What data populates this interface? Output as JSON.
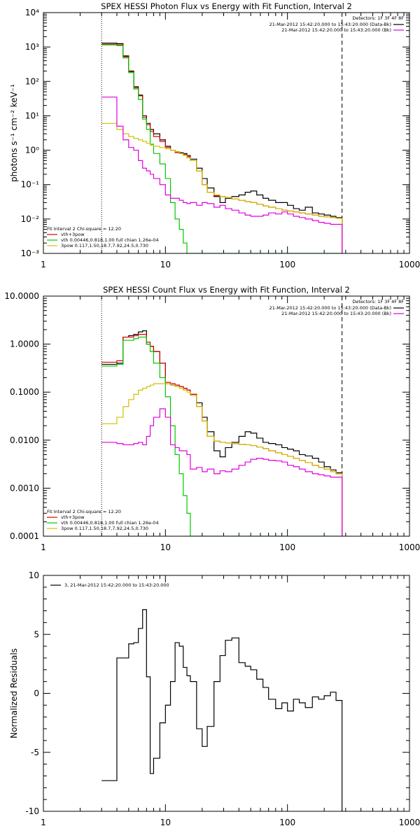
{
  "chart_data": [
    {
      "type": "line",
      "title": "SPEX HESSI Photon Flux vs Energy with Fit Function, Interval 2",
      "ylabel": "photons s⁻¹ cm⁻² keV⁻¹",
      "xlabel": "",
      "xscale": "log",
      "yscale": "log",
      "xlim": [
        1,
        1000
      ],
      "ylim": [
        0.001,
        10000
      ],
      "xticks": [
        "1",
        "10",
        "100",
        "1000"
      ],
      "yticks": [
        "10⁻³",
        "10⁻²",
        "10⁻¹",
        "10⁰",
        "10¹",
        "10²",
        "10³",
        "10⁴"
      ],
      "legend_right": {
        "header": "Detectors: 1F 3F 4F 8F",
        "entries": [
          {
            "label": "21-Mar-2012 15:42:20.000 to 15:43:20.000 (Data-Bk)",
            "color": "#000000"
          },
          {
            "label": "21-Mar-2012 15:42:20.000 to 15:43:20.000 (Bk)",
            "color": "#e000e0"
          }
        ]
      },
      "legend_left": {
        "header": "Fit Interval 2   Chi-square = 12.20",
        "entries": [
          {
            "label": "vth+3pow",
            "color": "#e00000"
          },
          {
            "label": "vth 0.00446,0.818,1.00  full chian 1.26e-04",
            "color": "#00d000"
          },
          {
            "label": "3pow 0.117,1.50,18.7,7.92,24.5,0.730",
            "color": "#d0c000"
          }
        ]
      },
      "vlines": [
        {
          "x": 3,
          "style": "dotted"
        },
        {
          "x": 280,
          "style": "dashed"
        }
      ],
      "x": [
        3,
        3.5,
        4,
        4.5,
        5,
        5.5,
        6,
        6.5,
        7,
        7.5,
        8,
        9,
        10,
        11,
        12,
        13,
        14,
        15,
        16,
        18,
        20,
        22,
        25,
        28,
        31,
        35,
        40,
        45,
        50,
        56,
        63,
        70,
        80,
        90,
        100,
        112,
        125,
        140,
        160,
        180,
        200,
        225,
        250,
        280
      ],
      "series": [
        {
          "name": "Data-Bk",
          "color": "#000000",
          "values": [
            1300,
            1300,
            1250,
            550,
            200,
            70,
            40,
            10,
            6,
            4,
            3,
            2,
            1.3,
            1.0,
            0.9,
            0.85,
            0.8,
            0.7,
            0.55,
            0.3,
            0.15,
            0.08,
            0.045,
            0.03,
            0.04,
            0.045,
            0.05,
            0.06,
            0.065,
            0.05,
            0.04,
            0.035,
            0.03,
            0.03,
            0.025,
            0.02,
            0.018,
            0.022,
            0.015,
            0.014,
            0.013,
            0.012,
            0.011,
            0.0009
          ]
        },
        {
          "name": "",
          "color": "#e00000",
          "values": [
            1200,
            1200,
            1150,
            520,
            190,
            65,
            38,
            9,
            5.5,
            3.5,
            2.5,
            1.8,
            1.2,
            1.0,
            0.85,
            0.8,
            0.75,
            0.65,
            0.5,
            0.25,
            0.1,
            0.06,
            0.048,
            0.045,
            0.042,
            0.038,
            0.035,
            0.032,
            0.03,
            0.027,
            0.024,
            0.022,
            0.02,
            0.018,
            0.017,
            0.016,
            0.015,
            0.014,
            0.013,
            0.012,
            0.0115,
            0.011,
            0.0105,
            0.0009
          ]
        },
        {
          "name": "",
          "color": "#00c800",
          "values": [
            1150,
            1150,
            1100,
            480,
            180,
            60,
            30,
            8,
            4,
            1.5,
            0.8,
            0.4,
            0.15,
            0.03,
            0.01,
            0.005,
            0.002,
            0.001,
            0.0009,
            0.0009,
            0.0009,
            0.0009,
            0.0009,
            0.0009,
            0.0009,
            0.0009,
            0.0009,
            0.0009,
            0.0009,
            0.0009,
            0.0009,
            0.0009,
            0.0009,
            0.0009,
            0.0009,
            0.0009,
            0.0009,
            0.0009,
            0.0009,
            0.0009,
            0.0009,
            0.0009,
            0.0009,
            0.0009
          ]
        },
        {
          "name": "",
          "color": "#d0c000",
          "values": [
            6,
            6,
            4,
            3,
            2.5,
            2.2,
            2,
            1.8,
            1.6,
            1.4,
            1.3,
            1.2,
            1.1,
            1.0,
            0.9,
            0.8,
            0.7,
            0.6,
            0.5,
            0.25,
            0.1,
            0.06,
            0.05,
            0.045,
            0.042,
            0.038,
            0.035,
            0.032,
            0.03,
            0.027,
            0.024,
            0.022,
            0.02,
            0.018,
            0.017,
            0.016,
            0.015,
            0.014,
            0.013,
            0.012,
            0.0115,
            0.011,
            0.0105,
            0.0009
          ]
        },
        {
          "name": "Bk",
          "color": "#e000e0",
          "values": [
            35,
            35,
            5,
            2,
            1.2,
            1.0,
            0.5,
            0.3,
            0.25,
            0.2,
            0.15,
            0.1,
            0.05,
            0.04,
            0.04,
            0.035,
            0.03,
            0.028,
            0.03,
            0.025,
            0.03,
            0.028,
            0.022,
            0.025,
            0.02,
            0.018,
            0.015,
            0.013,
            0.012,
            0.012,
            0.013,
            0.015,
            0.014,
            0.016,
            0.014,
            0.012,
            0.011,
            0.01,
            0.009,
            0.008,
            0.0075,
            0.007,
            0.007,
            0.0009
          ]
        }
      ]
    },
    {
      "type": "line",
      "title": "SPEX HESSI Count Flux vs Energy with Fit Function, Interval 2",
      "xlabel": "",
      "ylabel": "",
      "xscale": "log",
      "yscale": "log",
      "xlim": [
        1,
        1000
      ],
      "ylim": [
        0.0001,
        10
      ],
      "xticks": [
        "1",
        "10",
        "100",
        "1000"
      ],
      "yticks": [
        "0.0001",
        "0.0010",
        "0.0100",
        "0.1000",
        "1.0000",
        "10.0000"
      ],
      "legend_right": {
        "header": "Detectors: 1F 3F 4F 8F",
        "entries": [
          {
            "label": "21-Mar-2012 15:42:20.000 to 15:43:20.000 (Data-Bk)",
            "color": "#000000"
          },
          {
            "label": "21-Mar-2012 15:42:20.000 to 15:43:20.000 (Bk)",
            "color": "#e000e0"
          }
        ]
      },
      "legend_left": {
        "header": "Fit Interval 2   Chi-square = 12.20",
        "entries": [
          {
            "label": "vth+3pow",
            "color": "#e00000"
          },
          {
            "label": "vth 0.00446,0.818,1.00  full chian 1.26e-04",
            "color": "#00d000"
          },
          {
            "label": "3pow 0.117,1.50,18.7,7.92,24.5,0.730",
            "color": "#d0c000"
          }
        ]
      },
      "vlines": [
        {
          "x": 3,
          "style": "dotted"
        },
        {
          "x": 280,
          "style": "dashed"
        }
      ],
      "x": [
        3,
        3.5,
        4,
        4.5,
        5,
        5.5,
        6,
        6.5,
        7,
        7.5,
        8,
        9,
        10,
        11,
        12,
        13,
        14,
        15,
        16,
        18,
        20,
        22,
        25,
        28,
        31,
        35,
        40,
        45,
        50,
        56,
        63,
        70,
        80,
        90,
        100,
        112,
        125,
        140,
        160,
        180,
        200,
        225,
        250,
        280
      ],
      "series": [
        {
          "name": "Data-Bk",
          "color": "#000000",
          "values": [
            0.38,
            0.38,
            0.4,
            1.4,
            1.5,
            1.6,
            1.8,
            1.9,
            1.0,
            0.9,
            0.7,
            0.4,
            0.15,
            0.14,
            0.14,
            0.13,
            0.12,
            0.11,
            0.09,
            0.06,
            0.03,
            0.015,
            0.006,
            0.0045,
            0.007,
            0.009,
            0.012,
            0.015,
            0.014,
            0.011,
            0.009,
            0.0085,
            0.008,
            0.007,
            0.0065,
            0.006,
            0.005,
            0.0047,
            0.0042,
            0.0035,
            0.0028,
            0.0024,
            0.0021,
            0.0001
          ]
        },
        {
          "name": "",
          "color": "#e00000",
          "values": [
            0.42,
            0.42,
            0.45,
            1.4,
            1.4,
            1.5,
            1.6,
            1.6,
            1.1,
            0.9,
            0.7,
            0.4,
            0.16,
            0.15,
            0.14,
            0.13,
            0.12,
            0.11,
            0.09,
            0.05,
            0.025,
            0.012,
            0.0095,
            0.009,
            0.0088,
            0.0085,
            0.0082,
            0.008,
            0.0077,
            0.0072,
            0.0067,
            0.006,
            0.0055,
            0.005,
            0.0046,
            0.0042,
            0.0038,
            0.0034,
            0.003,
            0.0027,
            0.0025,
            0.0022,
            0.002,
            0.0001
          ]
        },
        {
          "name": "",
          "color": "#00c800",
          "values": [
            0.35,
            0.35,
            0.38,
            1.2,
            1.2,
            1.3,
            1.4,
            1.4,
            1.0,
            0.7,
            0.4,
            0.2,
            0.08,
            0.02,
            0.005,
            0.002,
            0.0007,
            0.0003,
            0.0001,
            0.0001,
            0.0001,
            0.0001,
            0.0001,
            0.0001,
            0.0001,
            0.0001,
            0.0001,
            0.0001,
            0.0001,
            0.0001,
            0.0001,
            0.0001,
            0.0001,
            0.0001,
            0.0001,
            0.0001,
            0.0001,
            0.0001,
            0.0001,
            0.0001,
            0.0001,
            0.0001,
            0.0001,
            0.0001
          ]
        },
        {
          "name": "",
          "color": "#d0c000",
          "values": [
            0.022,
            0.022,
            0.03,
            0.05,
            0.07,
            0.09,
            0.11,
            0.12,
            0.13,
            0.14,
            0.15,
            0.15,
            0.15,
            0.14,
            0.13,
            0.12,
            0.11,
            0.1,
            0.085,
            0.05,
            0.025,
            0.012,
            0.0095,
            0.009,
            0.0088,
            0.0085,
            0.0082,
            0.008,
            0.0077,
            0.0072,
            0.0067,
            0.006,
            0.0055,
            0.005,
            0.0046,
            0.0042,
            0.0038,
            0.0034,
            0.003,
            0.0027,
            0.0025,
            0.0022,
            0.002,
            0.0001
          ]
        },
        {
          "name": "Bk",
          "color": "#e000e0",
          "values": [
            0.009,
            0.009,
            0.0085,
            0.008,
            0.008,
            0.0085,
            0.009,
            0.008,
            0.012,
            0.02,
            0.03,
            0.045,
            0.03,
            0.008,
            0.007,
            0.006,
            0.006,
            0.005,
            0.0025,
            0.0027,
            0.0022,
            0.0025,
            0.002,
            0.0023,
            0.0022,
            0.0025,
            0.003,
            0.0035,
            0.004,
            0.0042,
            0.004,
            0.0038,
            0.0037,
            0.0035,
            0.003,
            0.0028,
            0.0025,
            0.0022,
            0.002,
            0.0019,
            0.0018,
            0.0017,
            0.0017,
            0.0001
          ]
        }
      ]
    },
    {
      "type": "line",
      "title": "",
      "xlabel": "",
      "ylabel": "Normalized Residuals",
      "xscale": "log",
      "yscale": "linear",
      "xlim": [
        1,
        1000
      ],
      "ylim": [
        -10,
        10
      ],
      "xticks": [
        "1",
        "10",
        "100",
        "1000"
      ],
      "yticks": [
        "-10",
        "-5",
        "0",
        "5",
        "10"
      ],
      "legend_left": {
        "header": "",
        "entries": [
          {
            "label": "3, 21-Mar-2012 15:42:20.000 to 15:43:20.000",
            "color": "#000000"
          }
        ]
      },
      "x": [
        3,
        3.5,
        4,
        4.5,
        5,
        5.5,
        6,
        6.5,
        7,
        7.5,
        8,
        9,
        10,
        11,
        12,
        13,
        14,
        15,
        16,
        18,
        20,
        22,
        25,
        28,
        31,
        35,
        40,
        45,
        50,
        56,
        63,
        70,
        80,
        90,
        100,
        112,
        125,
        140,
        160,
        180,
        200,
        225,
        250,
        280
      ],
      "series": [
        {
          "name": "3, 21-Mar-2012 15:42:20.000 to 15:43:20.000",
          "color": "#000000",
          "values": [
            -7.4,
            -7.4,
            3.0,
            3.0,
            4.2,
            4.3,
            5.5,
            7.1,
            1.4,
            -6.8,
            -5.5,
            -2.5,
            -1.0,
            1.0,
            4.3,
            4.0,
            2.2,
            1.5,
            1.0,
            -3.0,
            -4.5,
            -2.8,
            1.0,
            3.2,
            4.5,
            4.7,
            2.6,
            2.3,
            2.0,
            1.2,
            0.5,
            -0.5,
            -1.3,
            -0.8,
            -1.5,
            -0.5,
            -0.8,
            -1.2,
            -0.3,
            -0.5,
            -0.2,
            0.1,
            -0.6,
            -10
          ]
        }
      ]
    }
  ]
}
